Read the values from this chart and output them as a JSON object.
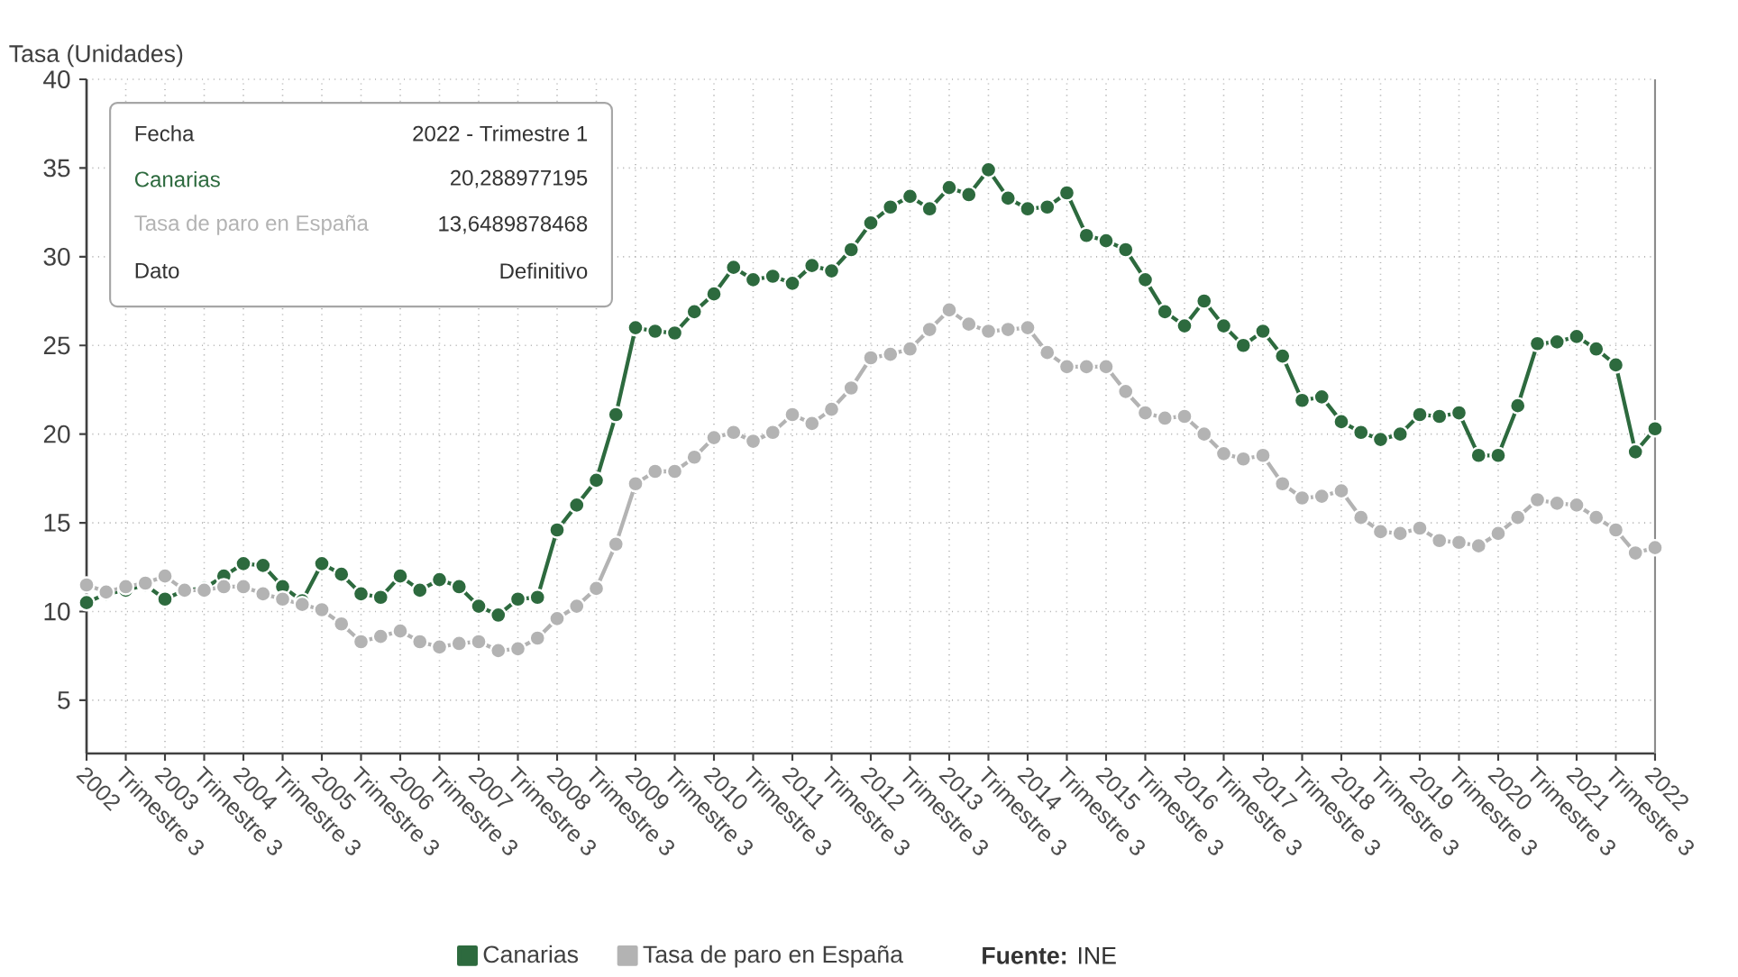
{
  "chart_data": {
    "type": "line",
    "ylabel": "Tasa (Unidades)",
    "categories": [
      "2002",
      null,
      "Trimestre 3",
      null,
      "2003",
      null,
      "Trimestre 3",
      null,
      "2004",
      null,
      "Trimestre 3",
      null,
      "2005",
      null,
      "Trimestre 3",
      null,
      "2006",
      null,
      "Trimestre 3",
      null,
      "2007",
      null,
      "Trimestre 3",
      null,
      "2008",
      null,
      "Trimestre 3",
      null,
      "2009",
      null,
      "Trimestre 3",
      null,
      "2010",
      null,
      "Trimestre 3",
      null,
      "2011",
      null,
      "Trimestre 3",
      null,
      "2012",
      null,
      "Trimestre 3",
      null,
      "2013",
      null,
      "Trimestre 3",
      null,
      "2014",
      null,
      "Trimestre 3",
      null,
      "2015",
      null,
      "Trimestre 3",
      null,
      "2016",
      null,
      "Trimestre 3",
      null,
      "2017",
      null,
      "Trimestre 3",
      null,
      "2018",
      null,
      "Trimestre 3",
      null,
      "2019",
      null,
      "Trimestre 3",
      null,
      "2020",
      null,
      "Trimestre 3",
      null,
      "2021",
      null,
      "Trimestre 3",
      null,
      "2022"
    ],
    "series": [
      {
        "name": "Canarias",
        "color": "#2d6a3e",
        "values": [
          10.5,
          11.0,
          11.2,
          11.5,
          10.7,
          11.2,
          11.3,
          12.0,
          12.7,
          12.6,
          11.4,
          10.6,
          12.7,
          12.1,
          11.0,
          10.8,
          12.0,
          11.2,
          11.8,
          11.4,
          10.3,
          9.8,
          10.7,
          10.8,
          14.6,
          16.0,
          17.4,
          21.1,
          26.0,
          25.8,
          25.7,
          26.9,
          27.9,
          29.4,
          28.7,
          28.9,
          28.5,
          29.5,
          29.2,
          30.4,
          31.9,
          32.8,
          33.4,
          32.7,
          33.9,
          33.5,
          34.9,
          33.3,
          32.7,
          32.8,
          33.6,
          31.2,
          30.9,
          30.4,
          28.7,
          26.9,
          26.1,
          27.5,
          26.1,
          25.0,
          25.8,
          24.4,
          21.9,
          22.1,
          20.7,
          20.1,
          19.7,
          20.0,
          21.1,
          21.0,
          21.2,
          18.8,
          18.8,
          21.6,
          25.1,
          25.2,
          25.5,
          24.8,
          23.9,
          19.0,
          20.3
        ]
      },
      {
        "name": "Tasa de paro en España",
        "color": "#b3b3b3",
        "values": [
          11.5,
          11.1,
          11.4,
          11.6,
          12.0,
          11.2,
          11.2,
          11.4,
          11.4,
          11.0,
          10.7,
          10.4,
          10.1,
          9.3,
          8.3,
          8.6,
          8.9,
          8.3,
          8.0,
          8.2,
          8.3,
          7.8,
          7.9,
          8.5,
          9.6,
          10.3,
          11.3,
          13.8,
          17.2,
          17.9,
          17.9,
          18.7,
          19.8,
          20.1,
          19.6,
          20.1,
          21.1,
          20.6,
          21.4,
          22.6,
          24.3,
          24.5,
          24.8,
          25.9,
          27.0,
          26.2,
          25.8,
          25.9,
          26.0,
          24.6,
          23.8,
          23.8,
          23.8,
          22.4,
          21.2,
          20.9,
          21.0,
          20.0,
          18.9,
          18.6,
          18.8,
          17.2,
          16.4,
          16.5,
          16.8,
          15.3,
          14.5,
          14.4,
          14.7,
          14.0,
          13.9,
          13.7,
          14.4,
          15.3,
          16.3,
          16.1,
          16.0,
          15.3,
          14.6,
          13.3,
          13.6
        ]
      }
    ],
    "ylim": [
      2,
      40
    ],
    "yticks": [
      5,
      10,
      15,
      20,
      25,
      30,
      35,
      40
    ],
    "grid": true,
    "legend": "bottom",
    "marker": "circle",
    "line_style": "solid",
    "annotations": [
      "Fecha",
      "2022 - Trimestre 1",
      "Canarias",
      "20,288977195",
      "Tasa de paro en España",
      "13,6489878468",
      "Dato",
      "Definitivo",
      "**Fuente:** INE"
    ]
  }
}
